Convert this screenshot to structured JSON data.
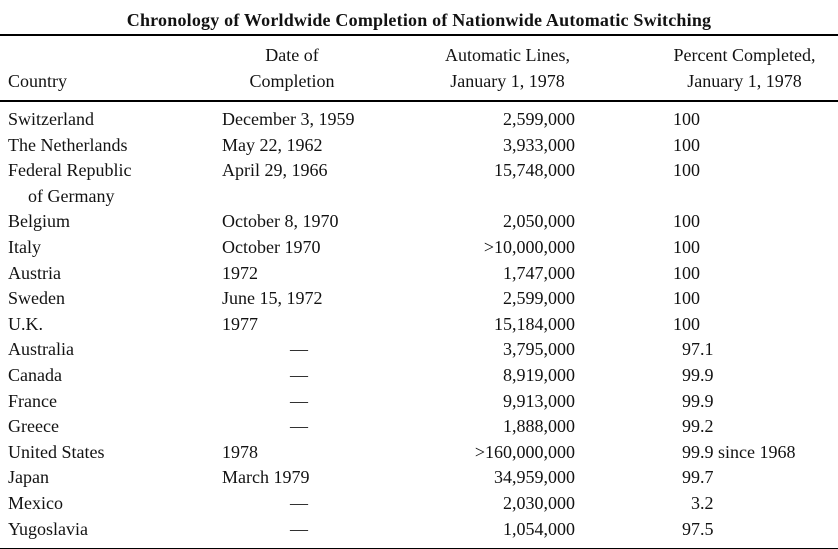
{
  "table": {
    "title": "Chronology of Worldwide Completion of Nationwide Automatic Switching",
    "columns": {
      "country": "Country",
      "date_line1": "Date of",
      "date_line2": "Completion",
      "lines_line1": "Automatic Lines,",
      "lines_line2": "January 1, 1978",
      "percent_line1": "Percent Completed,",
      "percent_line2": "January 1, 1978"
    },
    "no_date_symbol": "—",
    "rows": [
      {
        "country": "Switzerland",
        "date": "December 3, 1959",
        "lines": "2,599,000",
        "percent": "100"
      },
      {
        "country": "The Netherlands",
        "date": "May 22, 1962",
        "lines": "3,933,000",
        "percent": "100"
      },
      {
        "country": "Federal Republic",
        "country_line2": "of Germany",
        "date": "April 29, 1966",
        "lines": "15,748,000",
        "percent": "100"
      },
      {
        "country": "Belgium",
        "date": "October 8, 1970",
        "lines": "2,050,000",
        "percent": "100"
      },
      {
        "country": "Italy",
        "date": "October 1970",
        "lines": ">10,000,000",
        "percent": "100"
      },
      {
        "country": "Austria",
        "date": "1972",
        "lines": "1,747,000",
        "percent": "100"
      },
      {
        "country": "Sweden",
        "date": "June 15, 1972",
        "lines": "2,599,000",
        "percent": "100"
      },
      {
        "country": "U.K.",
        "date": "1977",
        "lines": "15,184,000",
        "percent": "100"
      },
      {
        "country": "Australia",
        "date": "—",
        "lines": "3,795,000",
        "percent": "97.1"
      },
      {
        "country": "Canada",
        "date": "—",
        "lines": "8,919,000",
        "percent": "99.9"
      },
      {
        "country": "France",
        "date": "—",
        "lines": "9,913,000",
        "percent": "99.9"
      },
      {
        "country": "Greece",
        "date": "—",
        "lines": "1,888,000",
        "percent": "99.2"
      },
      {
        "country": "United States",
        "date": "1978",
        "lines": ">160,000,000",
        "percent": "99.9 since 1968"
      },
      {
        "country": "Japan",
        "date": "March 1979",
        "lines": "34,959,000",
        "percent": "99.7"
      },
      {
        "country": "Mexico",
        "date": "—",
        "lines": "2,030,000",
        "percent": "3.2"
      },
      {
        "country": "Yugoslavia",
        "date": "—",
        "lines": "1,054,000",
        "percent": "97.5"
      }
    ]
  }
}
